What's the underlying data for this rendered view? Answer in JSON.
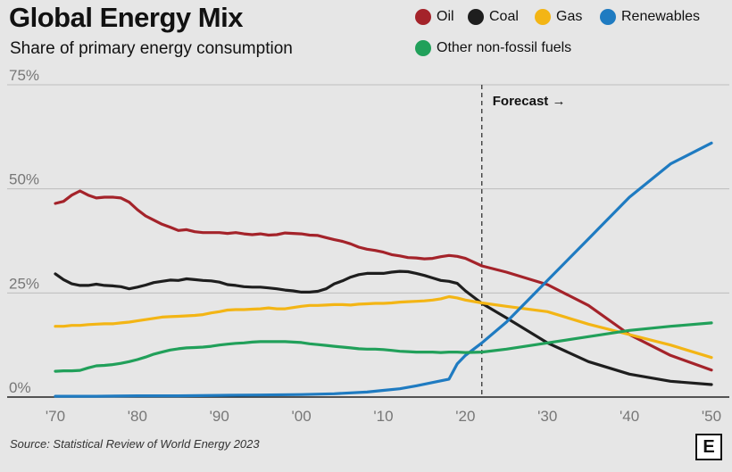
{
  "chart_data": {
    "type": "line",
    "title": "Global Energy Mix",
    "subtitle": "Share of primary energy consumption",
    "source": "Source: Statistical Review of World Energy 2023",
    "logo_letter": "E",
    "forecast_label": "Forecast",
    "forecast_arrow": "→",
    "forecast_year": 2022,
    "x_range": [
      1970,
      2050
    ],
    "ylim": [
      0,
      75
    ],
    "y_ticks": [
      {
        "value": 0,
        "label": "0%"
      },
      {
        "value": 25,
        "label": "25%"
      },
      {
        "value": 50,
        "label": "50%"
      },
      {
        "value": 75,
        "label": "75%"
      }
    ],
    "x_ticks": [
      {
        "value": 1970,
        "label": "'70"
      },
      {
        "value": 1980,
        "label": "'80"
      },
      {
        "value": 1990,
        "label": "'90"
      },
      {
        "value": 2000,
        "label": "'00"
      },
      {
        "value": 2010,
        "label": "'10"
      },
      {
        "value": 2020,
        "label": "'20"
      },
      {
        "value": 2030,
        "label": "'30"
      },
      {
        "value": 2040,
        "label": "'40"
      },
      {
        "value": 2050,
        "label": "'50"
      }
    ],
    "series": [
      {
        "name": "Oil",
        "color": "#a4232a",
        "x": [
          1970,
          1971,
          1972,
          1973,
          1974,
          1975,
          1976,
          1977,
          1978,
          1979,
          1980,
          1981,
          1982,
          1983,
          1984,
          1985,
          1986,
          1987,
          1988,
          1989,
          1990,
          1991,
          1992,
          1993,
          1994,
          1995,
          1996,
          1997,
          1998,
          1999,
          2000,
          2001,
          2002,
          2003,
          2004,
          2005,
          2006,
          2007,
          2008,
          2009,
          2010,
          2011,
          2012,
          2013,
          2014,
          2015,
          2016,
          2017,
          2018,
          2019,
          2020,
          2022,
          2025,
          2030,
          2035,
          2040,
          2045,
          2050
        ],
        "values": [
          46.5,
          47,
          48.5,
          49.5,
          48.5,
          47.8,
          48,
          48,
          47.8,
          46.8,
          45,
          43.5,
          42.5,
          41.5,
          40.8,
          40,
          40.2,
          39.7,
          39.5,
          39.5,
          39.5,
          39.3,
          39.5,
          39.2,
          39,
          39.2,
          38.9,
          39,
          39.4,
          39.3,
          39.2,
          38.9,
          38.8,
          38.3,
          37.8,
          37.4,
          36.8,
          36,
          35.5,
          35.2,
          34.8,
          34.2,
          33.9,
          33.5,
          33.4,
          33.2,
          33.3,
          33.7,
          34,
          33.8,
          33.3,
          31.5,
          30,
          27,
          22,
          15,
          10,
          6.5
        ]
      },
      {
        "name": "Coal",
        "color": "#1e1e1e",
        "x": [
          1970,
          1971,
          1972,
          1973,
          1974,
          1975,
          1976,
          1977,
          1978,
          1979,
          1980,
          1981,
          1982,
          1983,
          1984,
          1985,
          1986,
          1987,
          1988,
          1989,
          1990,
          1991,
          1992,
          1993,
          1994,
          1995,
          1996,
          1997,
          1998,
          1999,
          2000,
          2001,
          2002,
          2003,
          2004,
          2005,
          2006,
          2007,
          2008,
          2009,
          2010,
          2011,
          2012,
          2013,
          2014,
          2015,
          2016,
          2017,
          2018,
          2019,
          2020,
          2022,
          2025,
          2030,
          2035,
          2040,
          2045,
          2050
        ],
        "values": [
          29.6,
          28.2,
          27.2,
          26.8,
          26.8,
          27.1,
          26.8,
          26.7,
          26.5,
          26,
          26.4,
          26.9,
          27.5,
          27.8,
          28.1,
          28,
          28.4,
          28.2,
          28,
          27.9,
          27.6,
          27,
          26.8,
          26.5,
          26.4,
          26.4,
          26.2,
          26,
          25.7,
          25.5,
          25.2,
          25.2,
          25.4,
          26,
          27.2,
          27.9,
          28.8,
          29.4,
          29.7,
          29.7,
          29.7,
          30,
          30.2,
          30.1,
          29.7,
          29.2,
          28.6,
          28,
          27.8,
          27.3,
          25.5,
          22.5,
          19,
          13,
          8.5,
          5.5,
          3.8,
          3
        ]
      },
      {
        "name": "Gas",
        "color": "#f3b515",
        "x": [
          1970,
          1971,
          1972,
          1973,
          1974,
          1975,
          1976,
          1977,
          1978,
          1979,
          1980,
          1981,
          1982,
          1983,
          1984,
          1985,
          1986,
          1987,
          1988,
          1989,
          1990,
          1991,
          1992,
          1993,
          1994,
          1995,
          1996,
          1997,
          1998,
          1999,
          2000,
          2001,
          2002,
          2003,
          2004,
          2005,
          2006,
          2007,
          2008,
          2009,
          2010,
          2011,
          2012,
          2013,
          2014,
          2015,
          2016,
          2017,
          2018,
          2019,
          2020,
          2022,
          2025,
          2030,
          2035,
          2040,
          2045,
          2050
        ],
        "values": [
          17,
          17,
          17.2,
          17.2,
          17.4,
          17.5,
          17.6,
          17.6,
          17.8,
          18,
          18.3,
          18.6,
          18.9,
          19.2,
          19.3,
          19.4,
          19.5,
          19.6,
          19.8,
          20.2,
          20.5,
          20.9,
          21,
          21,
          21.1,
          21.2,
          21.4,
          21.2,
          21.2,
          21.5,
          21.8,
          22,
          22,
          22.1,
          22.2,
          22.2,
          22.1,
          22.3,
          22.4,
          22.5,
          22.5,
          22.6,
          22.8,
          22.9,
          23,
          23.1,
          23.3,
          23.6,
          24.1,
          23.8,
          23.3,
          22.6,
          21.8,
          20.5,
          17.5,
          15,
          12.5,
          9.5
        ]
      },
      {
        "name": "Renewables",
        "color": "#1f7bc1",
        "x": [
          1970,
          1975,
          1980,
          1985,
          1990,
          1995,
          2000,
          2004,
          2008,
          2010,
          2012,
          2014,
          2016,
          2018,
          2019,
          2020,
          2022,
          2025,
          2030,
          2035,
          2040,
          2045,
          2050
        ],
        "values": [
          0.2,
          0.2,
          0.3,
          0.3,
          0.4,
          0.5,
          0.6,
          0.8,
          1.2,
          1.6,
          2,
          2.7,
          3.5,
          4.3,
          8,
          10,
          13,
          18,
          28,
          38,
          48,
          56,
          61
        ]
      },
      {
        "name": "Other non-fossil fuels",
        "color": "#21a05a",
        "x": [
          1970,
          1971,
          1972,
          1973,
          1974,
          1975,
          1976,
          1977,
          1978,
          1979,
          1980,
          1981,
          1982,
          1983,
          1984,
          1985,
          1986,
          1987,
          1988,
          1989,
          1990,
          1991,
          1992,
          1993,
          1994,
          1995,
          1996,
          1997,
          1998,
          1999,
          2000,
          2001,
          2002,
          2003,
          2004,
          2005,
          2006,
          2007,
          2008,
          2009,
          2010,
          2011,
          2012,
          2013,
          2014,
          2015,
          2016,
          2017,
          2018,
          2019,
          2020,
          2022,
          2025,
          2030,
          2035,
          2040,
          2045,
          2050
        ],
        "values": [
          6.2,
          6.3,
          6.3,
          6.4,
          7,
          7.5,
          7.6,
          7.8,
          8.1,
          8.5,
          9,
          9.6,
          10.3,
          10.8,
          11.3,
          11.6,
          11.8,
          11.9,
          12,
          12.2,
          12.5,
          12.7,
          12.9,
          13,
          13.2,
          13.3,
          13.3,
          13.3,
          13.3,
          13.2,
          13.1,
          12.8,
          12.6,
          12.4,
          12.2,
          12,
          11.8,
          11.6,
          11.5,
          11.5,
          11.4,
          11.2,
          11,
          10.9,
          10.8,
          10.8,
          10.8,
          10.7,
          10.8,
          10.8,
          10.7,
          10.8,
          11.5,
          13,
          14.5,
          16,
          17,
          17.8
        ]
      }
    ]
  }
}
